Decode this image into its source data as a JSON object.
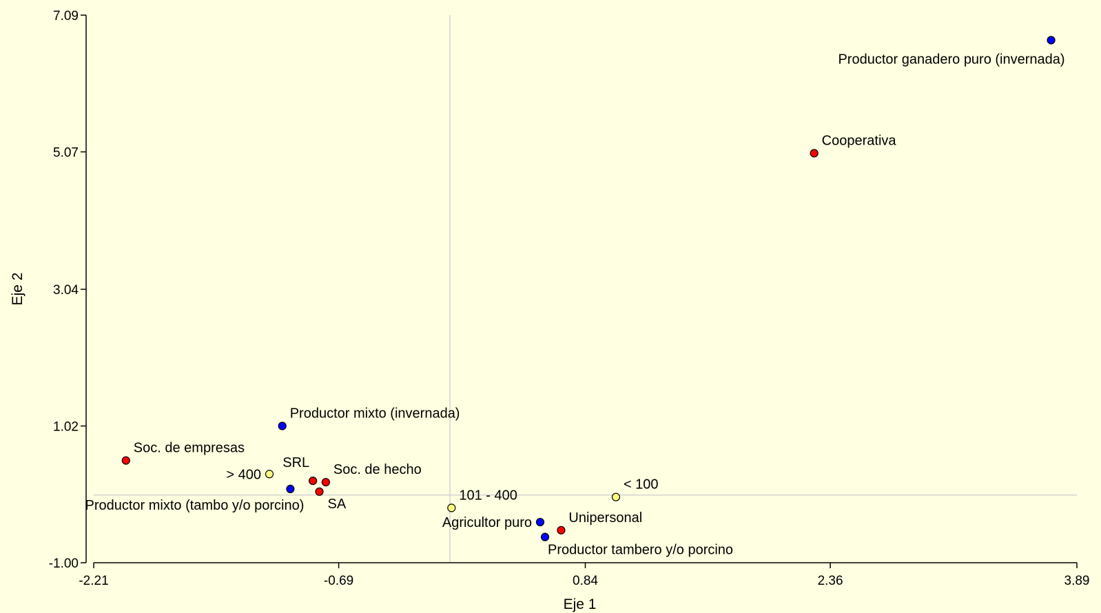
{
  "chart_data": {
    "type": "scatter",
    "title": "",
    "xlabel": "Eje 1",
    "ylabel": "Eje 2",
    "xlim": [
      -2.21,
      3.89
    ],
    "ylim": [
      -1.0,
      7.09
    ],
    "xticks": [
      "-2.21",
      "-0.69",
      "0.84",
      "2.36",
      "3.89"
    ],
    "yticks": [
      "-1.00",
      "1.02",
      "3.04",
      "5.07",
      "7.09"
    ],
    "grid": false,
    "reference_lines": {
      "x": 0.0,
      "y": 0.0
    },
    "colors": {
      "blue": "#0000FF",
      "red": "#FF0000",
      "yellow": "#FFFF80",
      "background": "#FFFFE1",
      "refline": "#D3D3D3"
    },
    "points": [
      {
        "label": "Productor ganadero puro (invernada)",
        "x": 3.73,
        "y": 6.72,
        "color": "#0000FF",
        "label_pos": "below-left"
      },
      {
        "label": "Cooperativa",
        "x": 2.26,
        "y": 5.05,
        "color": "#FF0000",
        "label_pos": "above-right"
      },
      {
        "label": "Productor mixto (invernada)",
        "x": -1.04,
        "y": 1.02,
        "color": "#0000FF",
        "label_pos": "above-right"
      },
      {
        "label": "Soc. de empresas",
        "x": -2.01,
        "y": 0.51,
        "color": "#FF0000",
        "label_pos": "above-right"
      },
      {
        "label": "> 400",
        "x": -1.12,
        "y": 0.31,
        "color": "#FFFF80",
        "label_pos": "left"
      },
      {
        "label": "SRL",
        "x": -0.85,
        "y": 0.21,
        "color": "#FF0000",
        "label_pos": "above-left"
      },
      {
        "label": "Soc. de hecho",
        "x": -0.77,
        "y": 0.19,
        "color": "#FF0000",
        "label_pos": "above-right"
      },
      {
        "label": "Productor mixto (tambo y/o porcino)",
        "x": -0.99,
        "y": 0.09,
        "color": "#0000FF",
        "label_pos": "below-left"
      },
      {
        "label": "SA",
        "x": -0.81,
        "y": 0.05,
        "color": "#FF0000",
        "label_pos": "below-right"
      },
      {
        "label": "101 - 400",
        "x": 0.01,
        "y": -0.19,
        "color": "#FFFF80",
        "label_pos": "above-right"
      },
      {
        "label": "< 100",
        "x": 1.03,
        "y": -0.03,
        "color": "#FFFF80",
        "label_pos": "above-right"
      },
      {
        "label": "Agricultor puro",
        "x": 0.56,
        "y": -0.4,
        "color": "#0000FF",
        "label_pos": "left"
      },
      {
        "label": "Unipersonal",
        "x": 0.69,
        "y": -0.52,
        "color": "#FF0000",
        "label_pos": "above-right"
      },
      {
        "label": "Productor tambero y/o porcino",
        "x": 0.59,
        "y": -0.62,
        "color": "#0000FF",
        "label_pos": "below-right"
      }
    ]
  }
}
